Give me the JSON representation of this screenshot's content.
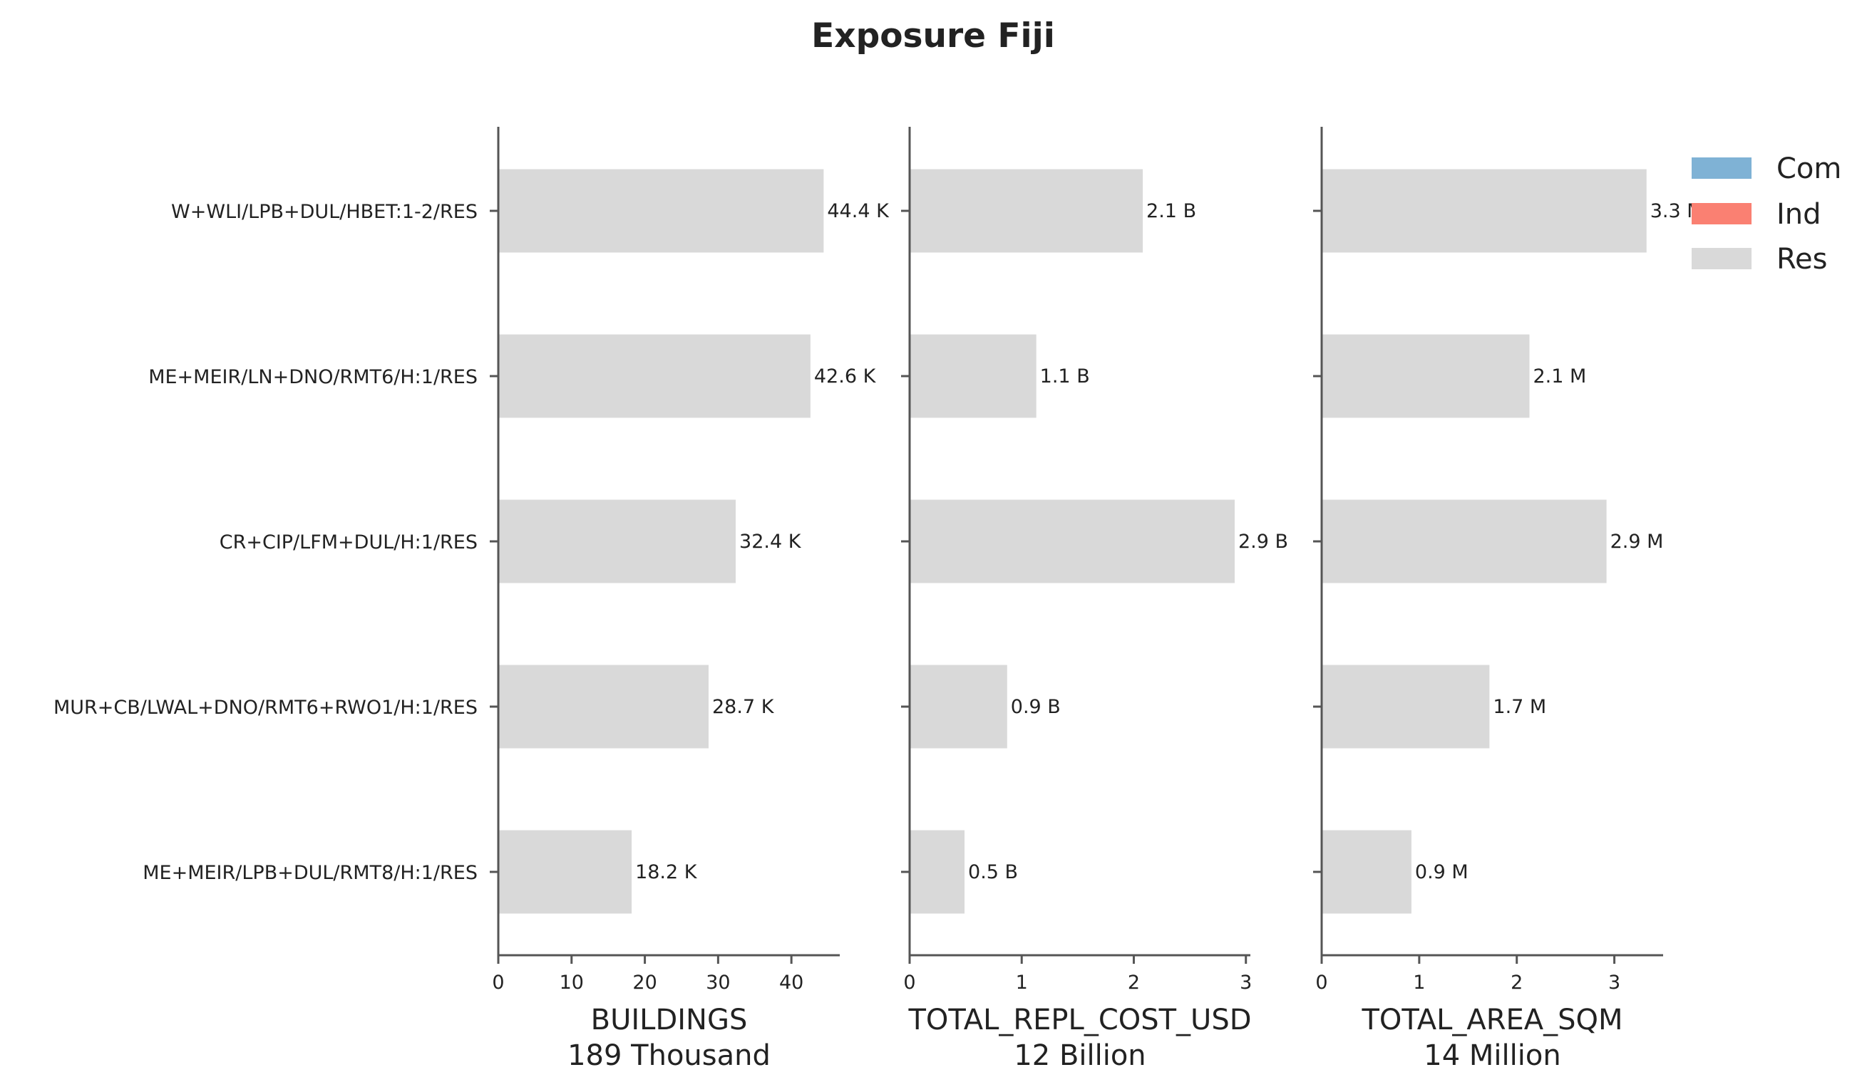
{
  "title": "Exposure Fiji",
  "categories": [
    "W+WLI/LPB+DUL/HBET:1-2/RES",
    "ME+MEIR/LN+DNO/RMT6/H:1/RES",
    "CR+CIP/LFM+DUL/H:1/RES",
    "MUR+CB/LWAL+DNO/RMT6+RWO1/H:1/RES",
    "ME+MEIR/LPB+DUL/RMT8/H:1/RES"
  ],
  "legend": {
    "placement": "top-right",
    "items": [
      {
        "label": "Com",
        "color": "#7fb2d5"
      },
      {
        "label": "Ind",
        "color": "#fa8072"
      },
      {
        "label": "Res",
        "color": "#d9d9d9"
      }
    ]
  },
  "colors": {
    "bar": "#d9d9d9",
    "axis": "#555555",
    "text": "#222222"
  },
  "chart_data": [
    {
      "type": "bar",
      "orientation": "horizontal",
      "xlabel": "BUILDINGS",
      "total_label": "189 Thousand",
      "xlim": [
        0,
        46.6
      ],
      "xticks": [
        0,
        10,
        20,
        30,
        40
      ],
      "series": [
        {
          "name": "Res",
          "values": [
            44.4,
            42.6,
            32.4,
            28.7,
            18.2
          ]
        }
      ],
      "value_labels": [
        "44.4 K",
        "42.6 K",
        "32.4 K",
        "28.7 K",
        "18.2 K"
      ]
    },
    {
      "type": "bar",
      "orientation": "horizontal",
      "xlabel": "TOTAL_REPL_COST_USD",
      "total_label": "12 Billion",
      "xlim": [
        0,
        3.04
      ],
      "xticks": [
        0,
        1,
        2,
        3
      ],
      "series": [
        {
          "name": "Res",
          "values": [
            2.08,
            1.13,
            2.9,
            0.87,
            0.49
          ]
        }
      ],
      "value_labels": [
        "2.1 B",
        "1.1 B",
        "2.9 B",
        "0.9 B",
        "0.5 B"
      ]
    },
    {
      "type": "bar",
      "orientation": "horizontal",
      "xlabel": "TOTAL_AREA_SQM",
      "total_label": "14 Million",
      "xlim": [
        0,
        3.5
      ],
      "xticks": [
        0,
        1,
        2,
        3
      ],
      "series": [
        {
          "name": "Res",
          "values": [
            3.33,
            2.13,
            2.92,
            1.72,
            0.92
          ]
        }
      ],
      "value_labels": [
        "3.3 M",
        "2.1 M",
        "2.9 M",
        "1.7 M",
        "0.9 M"
      ]
    }
  ]
}
